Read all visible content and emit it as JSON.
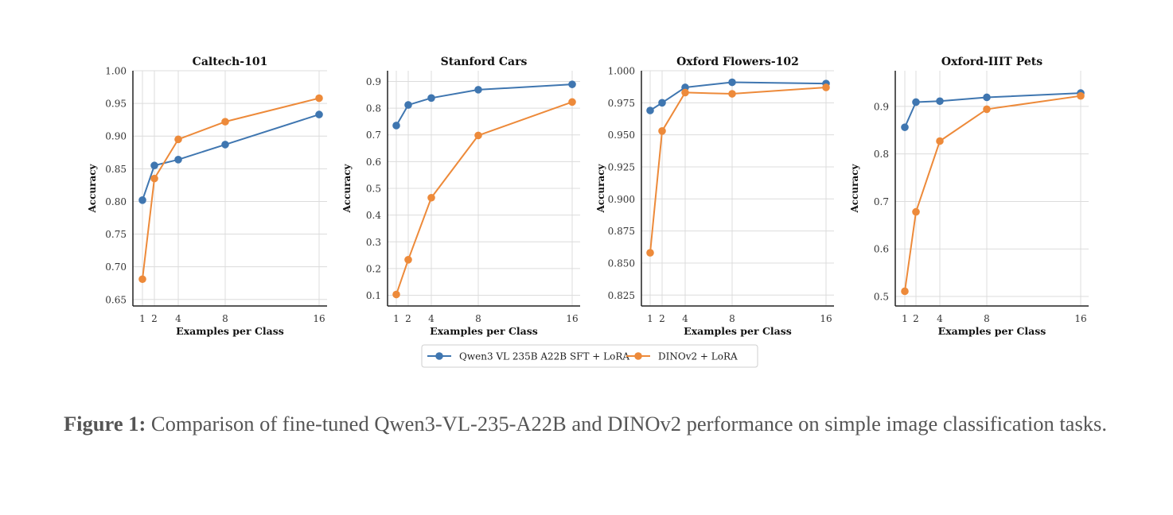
{
  "colors": {
    "series_blue": "#3f76b0",
    "series_orange": "#ed8a3a",
    "grid": "#dcdcdc",
    "axis": "#222222"
  },
  "legend": {
    "entries": [
      {
        "name": "Qwen3 VL 235B A22B SFT + LoRA",
        "color": "#3f76b0"
      },
      {
        "name": "DINOv2 + LoRA",
        "color": "#ed8a3a"
      }
    ]
  },
  "caption": {
    "label": "Figure 1:",
    "text": "Comparison of fine-tuned Qwen3-VL-235-A22B and DINOv2 performance on simple image classification tasks."
  },
  "chart_data": [
    {
      "type": "line",
      "title": "Caltech-101",
      "xlabel": "Examples per Class",
      "ylabel": "Accuracy",
      "x": [
        1,
        2,
        4,
        8,
        16
      ],
      "xticks": [
        "1",
        "2",
        "4",
        "8",
        "16"
      ],
      "ylim": [
        0.64,
        1.0
      ],
      "yticks": [
        "0.65",
        "0.70",
        "0.75",
        "0.80",
        "0.85",
        "0.90",
        "0.95",
        "1.00"
      ],
      "series": [
        {
          "name": "Qwen3 VL 235B A22B SFT + LoRA",
          "values": [
            0.802,
            0.855,
            0.864,
            0.887,
            0.933
          ]
        },
        {
          "name": "DINOv2 + LoRA",
          "values": [
            0.681,
            0.835,
            0.895,
            0.922,
            0.958
          ]
        }
      ]
    },
    {
      "type": "line",
      "title": "Stanford Cars",
      "xlabel": "Examples per Class",
      "ylabel": "Accuracy",
      "x": [
        1,
        2,
        4,
        8,
        16
      ],
      "xticks": [
        "1",
        "2",
        "4",
        "8",
        "16"
      ],
      "ylim": [
        0.06,
        0.94
      ],
      "yticks": [
        "0.1",
        "0.2",
        "0.3",
        "0.4",
        "0.5",
        "0.6",
        "0.7",
        "0.8",
        "0.9"
      ],
      "series": [
        {
          "name": "Qwen3 VL 235B A22B SFT + LoRA",
          "values": [
            0.735,
            0.812,
            0.838,
            0.869,
            0.889
          ]
        },
        {
          "name": "DINOv2 + LoRA",
          "values": [
            0.103,
            0.233,
            0.465,
            0.698,
            0.823
          ]
        }
      ]
    },
    {
      "type": "line",
      "title": "Oxford Flowers-102",
      "xlabel": "Examples per Class",
      "ylabel": "Accuracy",
      "x": [
        1,
        2,
        4,
        8,
        16
      ],
      "xticks": [
        "1",
        "2",
        "4",
        "8",
        "16"
      ],
      "ylim": [
        0.8165,
        1.0
      ],
      "yticks": [
        "0.825",
        "0.850",
        "0.875",
        "0.900",
        "0.925",
        "0.950",
        "0.975",
        "1.000"
      ],
      "series": [
        {
          "name": "Qwen3 VL 235B A22B SFT + LoRA",
          "values": [
            0.969,
            0.975,
            0.987,
            0.991,
            0.99
          ]
        },
        {
          "name": "DINOv2 + LoRA",
          "values": [
            0.858,
            0.953,
            0.983,
            0.982,
            0.987
          ]
        }
      ]
    },
    {
      "type": "line",
      "title": "Oxford-IIIT Pets",
      "xlabel": "Examples per Class",
      "ylabel": "Accuracy",
      "x": [
        1,
        2,
        4,
        8,
        16
      ],
      "xticks": [
        "1",
        "2",
        "4",
        "8",
        "16"
      ],
      "ylim": [
        0.48,
        0.975
      ],
      "yticks": [
        "0.5",
        "0.6",
        "0.7",
        "0.8",
        "0.9"
      ],
      "series": [
        {
          "name": "Qwen3 VL 235B A22B SFT + LoRA",
          "values": [
            0.856,
            0.909,
            0.911,
            0.919,
            0.928
          ]
        },
        {
          "name": "DINOv2 + LoRA",
          "values": [
            0.511,
            0.678,
            0.827,
            0.894,
            0.922
          ]
        }
      ]
    }
  ]
}
